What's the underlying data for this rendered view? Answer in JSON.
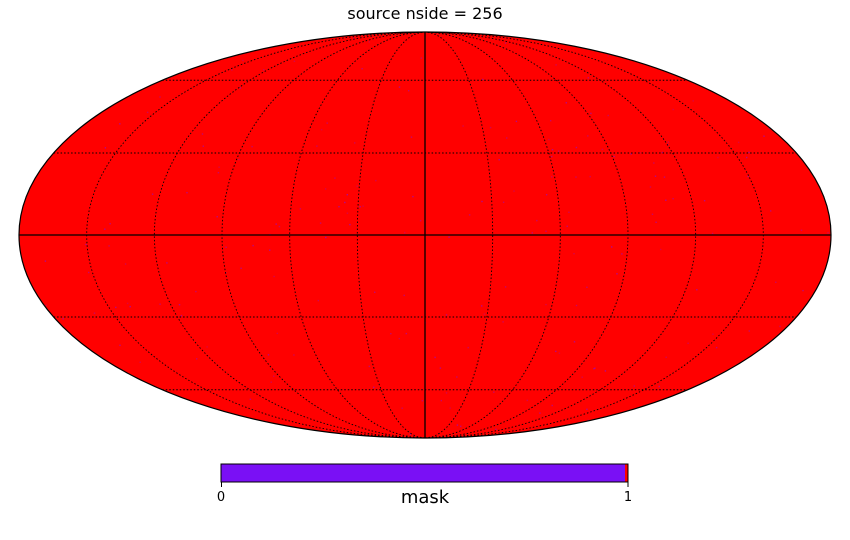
{
  "title": "source nside = 256",
  "projection": "mollweide",
  "graticule": {
    "meridian_step_deg": 30,
    "parallel_step_deg": 30,
    "style": "dotted"
  },
  "map": {
    "fill_color": "#ff0000",
    "speckle_color": "#7a10f5",
    "outline_color": "#000000"
  },
  "colorbar": {
    "label": "mask",
    "min": 0,
    "max": 1,
    "min_label": "0",
    "max_label": "1",
    "main_color": "#7a10f5",
    "end_color": "#ff0000"
  },
  "chart_data": {
    "type": "heatmap",
    "title": "source nside = 256",
    "colorbar_label": "mask",
    "range": [
      0,
      1
    ],
    "ticks": [
      "0",
      "1"
    ],
    "dominant_value": 1
  }
}
